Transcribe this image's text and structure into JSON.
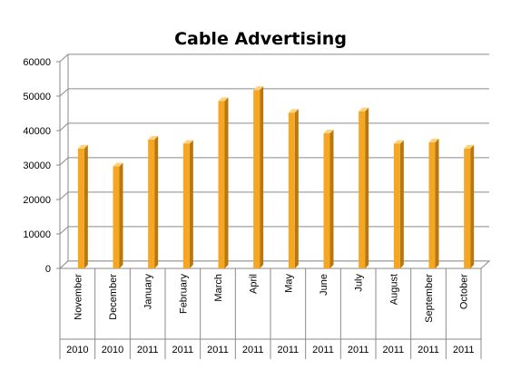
{
  "chart_data": {
    "type": "bar",
    "title": "Cable Advertising",
    "xlabel": "",
    "ylabel": "",
    "ylim": [
      0,
      60000
    ],
    "yticks": [
      0,
      10000,
      20000,
      30000,
      40000,
      50000,
      60000
    ],
    "grid": true,
    "legend": "none",
    "categories": [
      {
        "month": "November",
        "year": "2010"
      },
      {
        "month": "December",
        "year": "2010"
      },
      {
        "month": "January",
        "year": "2011"
      },
      {
        "month": "February",
        "year": "2011"
      },
      {
        "month": "March",
        "year": "2011"
      },
      {
        "month": "April",
        "year": "2011"
      },
      {
        "month": "May",
        "year": "2011"
      },
      {
        "month": "June",
        "year": "2011"
      },
      {
        "month": "July",
        "year": "2011"
      },
      {
        "month": "August",
        "year": "2011"
      },
      {
        "month": "September",
        "year": "2011"
      },
      {
        "month": "October",
        "year": "2011"
      }
    ],
    "values": [
      34800,
      29600,
      37400,
      36200,
      48600,
      51800,
      45200,
      39200,
      45600,
      36200,
      36600,
      34800
    ],
    "colors": {
      "bar_front": "#f5a623",
      "bar_side": "#b9780f",
      "bar_top": "#fcd27a",
      "grid": "#8a8a8a",
      "axis": "#8a8a8a"
    }
  }
}
